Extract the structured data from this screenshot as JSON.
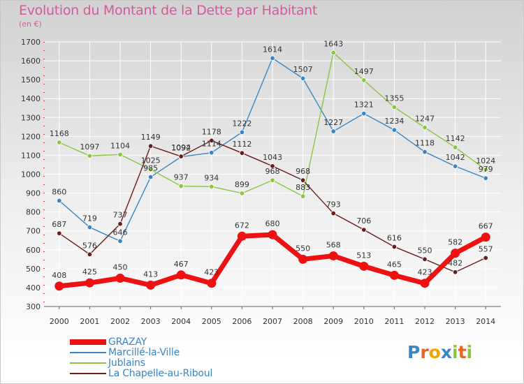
{
  "title": "Evolution du Montant de la Dette par Habitant",
  "subtitle": "(en €)",
  "logo": {
    "letters": [
      "P",
      "r",
      "o",
      "x",
      "i",
      "t",
      "i"
    ],
    "colors": [
      "#3a86c4",
      "#e6662a",
      "#f2a400",
      "#3a86c4",
      "#8cc63f",
      "#e6662a",
      "#8cc63f"
    ]
  },
  "chart_data": {
    "type": "line",
    "title": "Evolution du Montant de la Dette par Habitant",
    "subtitle": "(en €)",
    "xlabel": "",
    "ylabel": "",
    "x": [
      "2000",
      "2001",
      "2002",
      "2003",
      "2004",
      "2005",
      "2006",
      "2007",
      "2008",
      "2009",
      "2010",
      "2011",
      "2012",
      "2013",
      "2014"
    ],
    "yticks": [
      "300",
      "400",
      "500",
      "600",
      "700",
      "800",
      "900",
      "1000",
      "1100",
      "1200",
      "1300",
      "1400",
      "1500",
      "1600",
      "1700"
    ],
    "ylim": [
      300,
      1700
    ],
    "grid": true,
    "legend_position": "bottom-left",
    "series": [
      {
        "name": "Marcillé-la-Ville",
        "color": "#3a86c4",
        "values": [
          860,
          719,
          646,
          985,
          1092,
          1114,
          1222,
          1614,
          1507,
          1227,
          1321,
          1234,
          1118,
          1042,
          979
        ],
        "labels": [
          "860",
          "719",
          "646",
          "985",
          "1092",
          "1114",
          "1222",
          "1614",
          "1507",
          "1227",
          "1321",
          "1234",
          "1118",
          "1042",
          "979"
        ]
      },
      {
        "name": "Jublains",
        "color": "#8cc63f",
        "values": [
          1168,
          1097,
          1104,
          1025,
          937,
          934,
          899,
          968,
          883,
          1643,
          1497,
          1355,
          1247,
          1142,
          1024
        ],
        "labels": [
          "1168",
          "1097",
          "1104",
          "1025",
          "937",
          "934",
          "899",
          "968",
          "883",
          "1643",
          "1497",
          "1355",
          "1247",
          "1142",
          "1024"
        ]
      },
      {
        "name": "La Chapelle-au-Riboul",
        "color": "#6b1c1c",
        "values": [
          687,
          576,
          737,
          1149,
          1094,
          1178,
          1112,
          1043,
          968,
          793,
          706,
          616,
          550,
          482,
          557
        ],
        "labels": [
          "687",
          "576",
          "737",
          "1149",
          "1094",
          "1178",
          "1112",
          "1043",
          "968",
          "793",
          "706",
          "616",
          "550",
          "482",
          "557"
        ]
      },
      {
        "name": "GRAZAY",
        "color": "#ee1111",
        "values": [
          408,
          425,
          450,
          413,
          467,
          423,
          672,
          680,
          550,
          568,
          513,
          465,
          423,
          582,
          667
        ],
        "labels": [
          "408",
          "425",
          "450",
          "413",
          "467",
          "423",
          "672",
          "680",
          "550",
          "568",
          "513",
          "465",
          "423",
          "582",
          "667"
        ]
      }
    ]
  },
  "legend": [
    {
      "label": "GRAZAY",
      "color": "#ee1111",
      "thickness": 8
    },
    {
      "label": "Marcillé-la-Ville",
      "color": "#3a86c4",
      "thickness": 2
    },
    {
      "label": "Jublains",
      "color": "#8cc63f",
      "thickness": 2
    },
    {
      "label": "La Chapelle-au-Riboul",
      "color": "#6b1c1c",
      "thickness": 2
    }
  ]
}
